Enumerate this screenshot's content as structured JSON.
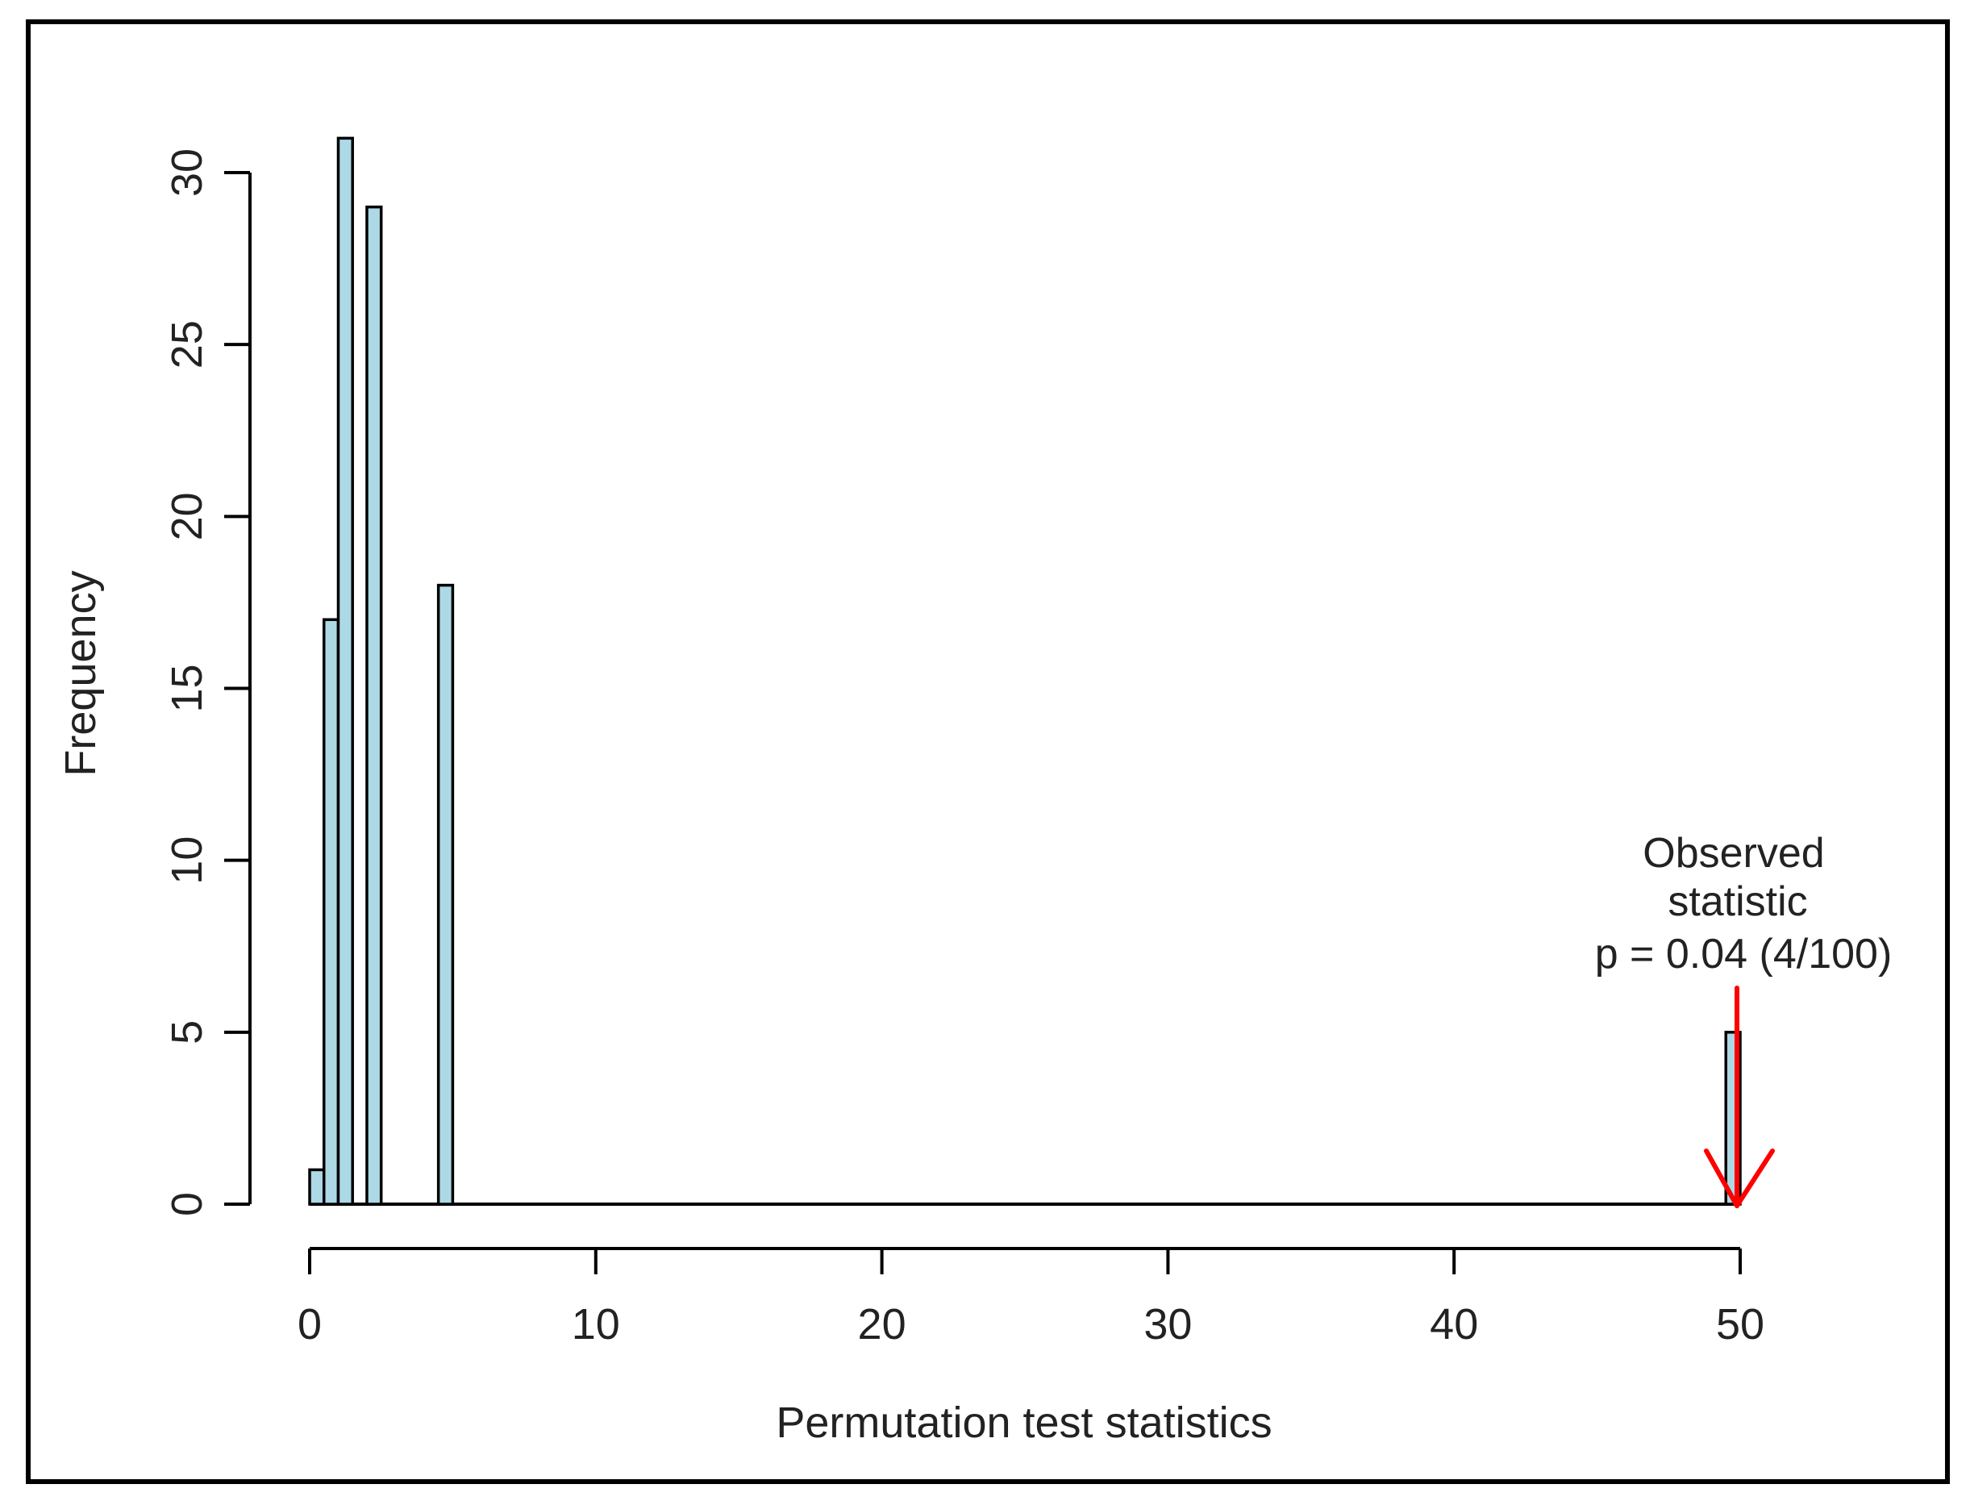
{
  "chart_data": {
    "type": "bar",
    "title": "",
    "xlabel": "Permutation test statistics",
    "ylabel": "Frequency",
    "xlim": [
      0,
      50
    ],
    "ylim": [
      0,
      30
    ],
    "x_ticks": [
      0,
      10,
      20,
      30,
      40,
      50
    ],
    "y_ticks": [
      0,
      5,
      10,
      15,
      20,
      25,
      30
    ],
    "bar_color": "#add8e6",
    "bars": [
      {
        "x0": 0.0,
        "x1": 0.5,
        "value": 1
      },
      {
        "x0": 0.5,
        "x1": 1.0,
        "value": 17
      },
      {
        "x0": 1.0,
        "x1": 1.5,
        "value": 31
      },
      {
        "x0": 2.0,
        "x1": 2.5,
        "value": 29
      },
      {
        "x0": 4.5,
        "x1": 5.0,
        "value": 18
      },
      {
        "x0": 49.5,
        "x1": 50.0,
        "value": 5
      }
    ],
    "annotation": {
      "lines": [
        "Observed",
        "statistic",
        "p = 0.04 (4/100)"
      ],
      "arrow_x": 50,
      "arrow_color": "#ff0000"
    }
  }
}
